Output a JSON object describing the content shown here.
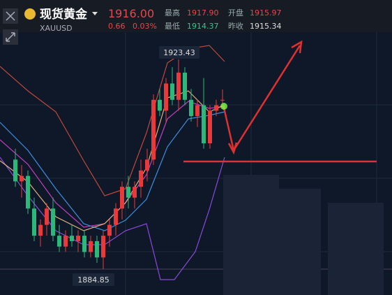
{
  "header": {
    "title": "现货黄金",
    "symbol": "XAUUSD",
    "price": "1916.00",
    "change": "0.66",
    "change_pct": "0.03%",
    "high_label": "最高",
    "high": "1917.90",
    "open_label": "开盘",
    "open": "1915.97",
    "low_label": "最低",
    "low": "1914.37",
    "prev_close_label": "昨收",
    "prev_close": "1915.34"
  },
  "chart": {
    "type": "candlestick",
    "high": 1923.43,
    "low": 1884.85,
    "candles": [
      {
        "open": 1905,
        "high": 1907,
        "low": 1900,
        "close": 1901
      },
      {
        "open": 1901,
        "high": 1904,
        "low": 1898,
        "close": 1902
      },
      {
        "open": 1902,
        "high": 1903,
        "low": 1895,
        "close": 1896
      },
      {
        "open": 1896,
        "high": 1898,
        "low": 1890,
        "close": 1891
      },
      {
        "open": 1891,
        "high": 1894,
        "low": 1889,
        "close": 1893
      },
      {
        "open": 1893,
        "high": 1897,
        "low": 1891,
        "close": 1896
      },
      {
        "open": 1896,
        "high": 1898,
        "low": 1890,
        "close": 1891
      },
      {
        "open": 1891,
        "high": 1893,
        "low": 1888,
        "close": 1889
      },
      {
        "open": 1889,
        "high": 1892,
        "low": 1888,
        "close": 1891
      },
      {
        "open": 1891,
        "high": 1893,
        "low": 1889,
        "close": 1890
      },
      {
        "open": 1890,
        "high": 1892,
        "low": 1888,
        "close": 1891
      },
      {
        "open": 1891,
        "high": 1892,
        "low": 1887,
        "close": 1888
      },
      {
        "open": 1888,
        "high": 1891,
        "low": 1887,
        "close": 1890
      },
      {
        "open": 1890,
        "high": 1891,
        "low": 1886,
        "close": 1887
      },
      {
        "open": 1887,
        "high": 1892,
        "low": 1884.85,
        "close": 1891
      },
      {
        "open": 1891,
        "high": 1894,
        "low": 1889,
        "close": 1893
      },
      {
        "open": 1893,
        "high": 1897,
        "low": 1891,
        "close": 1896
      },
      {
        "open": 1896,
        "high": 1901,
        "low": 1894,
        "close": 1900
      },
      {
        "open": 1900,
        "high": 1902,
        "low": 1896,
        "close": 1898
      },
      {
        "open": 1898,
        "high": 1901,
        "low": 1896,
        "close": 1900
      },
      {
        "open": 1900,
        "high": 1905,
        "low": 1898,
        "close": 1903
      },
      {
        "open": 1903,
        "high": 1907,
        "low": 1901,
        "close": 1905
      },
      {
        "open": 1905,
        "high": 1917,
        "low": 1904,
        "close": 1916
      },
      {
        "open": 1916,
        "high": 1918,
        "low": 1913,
        "close": 1914
      },
      {
        "open": 1914,
        "high": 1920,
        "low": 1912,
        "close": 1919
      },
      {
        "open": 1919,
        "high": 1922,
        "low": 1915,
        "close": 1916
      },
      {
        "open": 1916,
        "high": 1923.43,
        "low": 1914,
        "close": 1921
      },
      {
        "open": 1921,
        "high": 1922,
        "low": 1915,
        "close": 1916
      },
      {
        "open": 1916,
        "high": 1918,
        "low": 1912,
        "close": 1913
      },
      {
        "open": 1913,
        "high": 1916,
        "low": 1911,
        "close": 1915
      },
      {
        "open": 1915,
        "high": 1920,
        "low": 1907,
        "close": 1908
      },
      {
        "open": 1908,
        "high": 1915,
        "low": 1907,
        "close": 1914
      },
      {
        "open": 1914,
        "high": 1916,
        "low": 1913,
        "close": 1915
      },
      {
        "open": 1915.97,
        "high": 1917.9,
        "low": 1914.37,
        "close": 1916
      }
    ]
  }
}
